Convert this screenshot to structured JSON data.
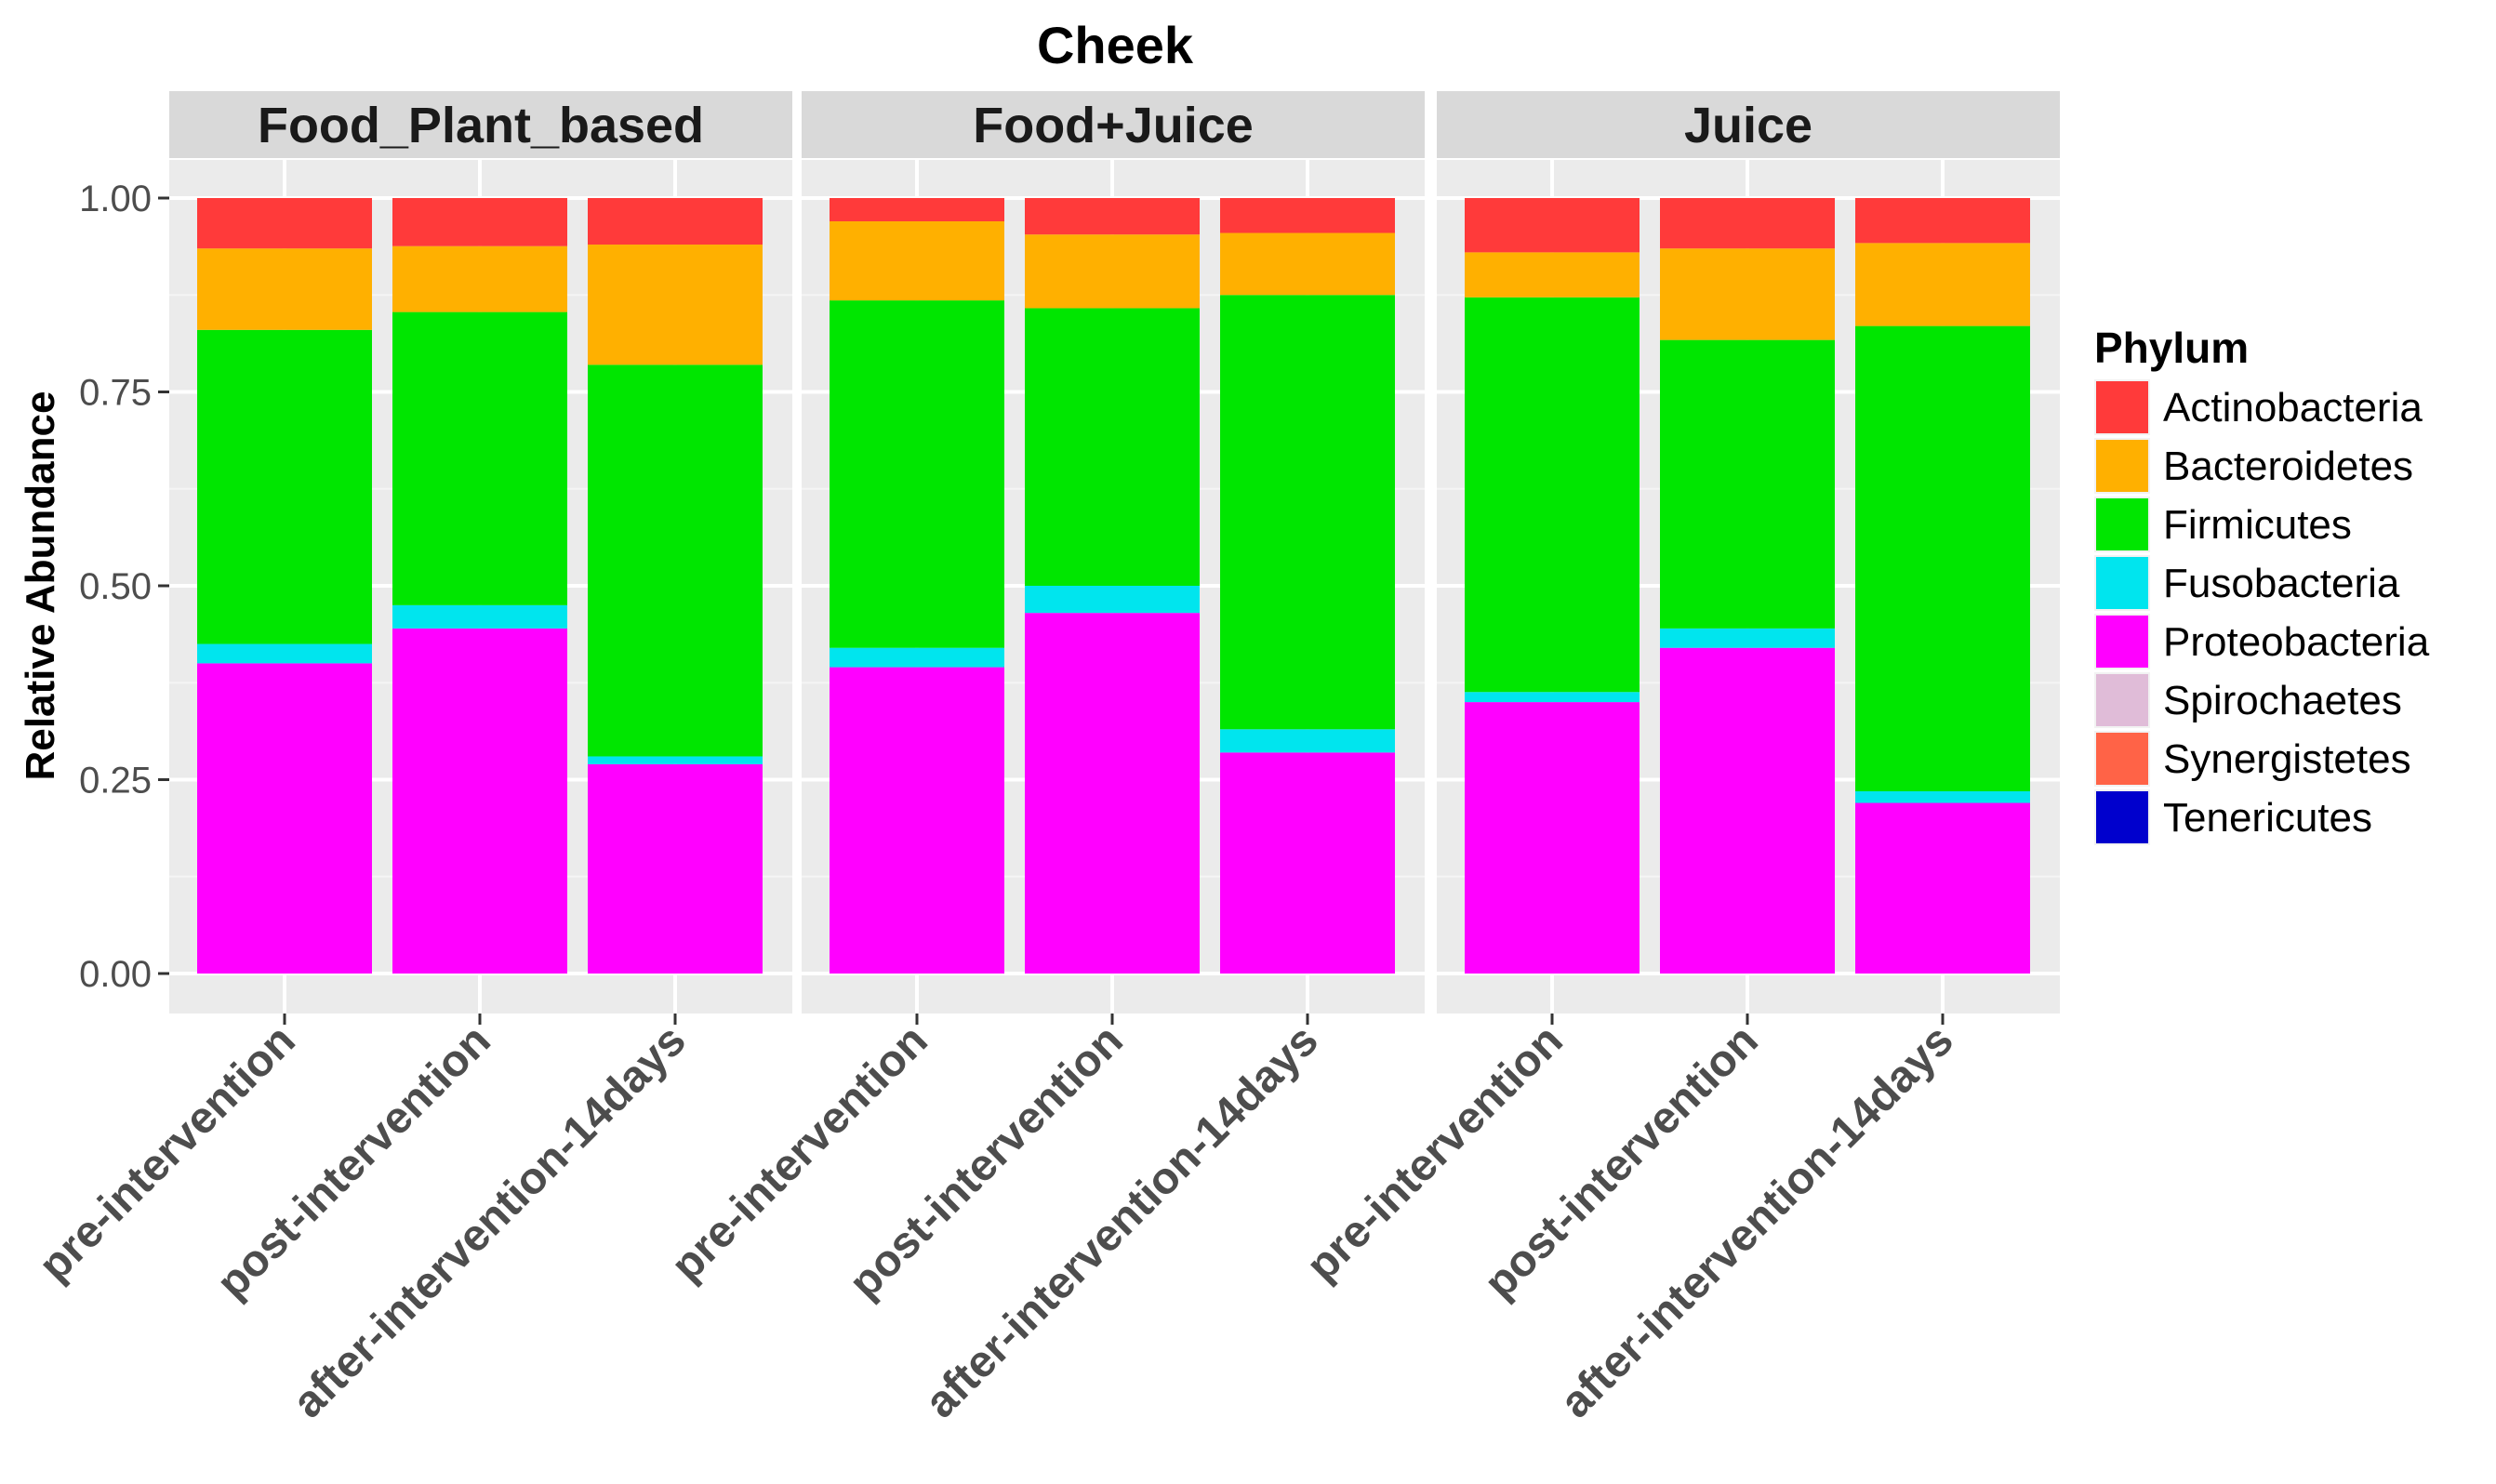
{
  "chart_data": {
    "type": "bar",
    "stacked": true,
    "title": "Cheek",
    "ylabel": "Relative Abundance",
    "xlabel": "",
    "ylim": [
      0,
      1
    ],
    "yticks": [
      "0.00",
      "0.25",
      "0.50",
      "0.75",
      "1.00"
    ],
    "categories": [
      "pre-intervention",
      "post-intervention",
      "after-intervention-14days"
    ],
    "legend": {
      "title": "Phylum",
      "position": "right",
      "entries": [
        {
          "name": "Actinobacteria",
          "color": "#ff3a3a"
        },
        {
          "name": "Bacteroidetes",
          "color": "#ffb000"
        },
        {
          "name": "Firmicutes",
          "color": "#00e600"
        },
        {
          "name": "Fusobacteria",
          "color": "#00e5ee"
        },
        {
          "name": "Proteobacteria",
          "color": "#ff00ff"
        },
        {
          "name": "Spirochaetes",
          "color": "#e0bcd8"
        },
        {
          "name": "Synergistetes",
          "color": "#ff6347"
        },
        {
          "name": "Tenericutes",
          "color": "#0000cd"
        }
      ]
    },
    "panels": [
      {
        "name": "Food_Plant_based",
        "bars": [
          {
            "category": "pre-intervention",
            "values": {
              "Proteobacteria": 0.4,
              "Fusobacteria": 0.025,
              "Firmicutes": 0.405,
              "Bacteroidetes": 0.105,
              "Actinobacteria": 0.065
            }
          },
          {
            "category": "post-intervention",
            "values": {
              "Proteobacteria": 0.445,
              "Fusobacteria": 0.03,
              "Firmicutes": 0.378,
              "Bacteroidetes": 0.085,
              "Actinobacteria": 0.062
            }
          },
          {
            "category": "after-intervention-14days",
            "values": {
              "Proteobacteria": 0.27,
              "Fusobacteria": 0.01,
              "Firmicutes": 0.505,
              "Bacteroidetes": 0.155,
              "Actinobacteria": 0.06
            }
          }
        ]
      },
      {
        "name": "Food+Juice",
        "bars": [
          {
            "category": "pre-intervention",
            "values": {
              "Proteobacteria": 0.395,
              "Fusobacteria": 0.025,
              "Firmicutes": 0.448,
              "Bacteroidetes": 0.102,
              "Actinobacteria": 0.03
            }
          },
          {
            "category": "post-intervention",
            "values": {
              "Proteobacteria": 0.465,
              "Fusobacteria": 0.035,
              "Firmicutes": 0.358,
              "Bacteroidetes": 0.095,
              "Actinobacteria": 0.047
            }
          },
          {
            "category": "after-intervention-14days",
            "values": {
              "Proteobacteria": 0.285,
              "Fusobacteria": 0.03,
              "Firmicutes": 0.56,
              "Bacteroidetes": 0.08,
              "Actinobacteria": 0.045
            }
          }
        ]
      },
      {
        "name": "Juice",
        "bars": [
          {
            "category": "pre-intervention",
            "values": {
              "Proteobacteria": 0.35,
              "Fusobacteria": 0.013,
              "Firmicutes": 0.509,
              "Bacteroidetes": 0.058,
              "Actinobacteria": 0.07
            }
          },
          {
            "category": "post-intervention",
            "values": {
              "Proteobacteria": 0.42,
              "Fusobacteria": 0.025,
              "Firmicutes": 0.372,
              "Bacteroidetes": 0.118,
              "Actinobacteria": 0.065
            }
          },
          {
            "category": "after-intervention-14days",
            "values": {
              "Proteobacteria": 0.22,
              "Fusobacteria": 0.015,
              "Firmicutes": 0.6,
              "Bacteroidetes": 0.107,
              "Actinobacteria": 0.058
            }
          }
        ]
      }
    ]
  }
}
